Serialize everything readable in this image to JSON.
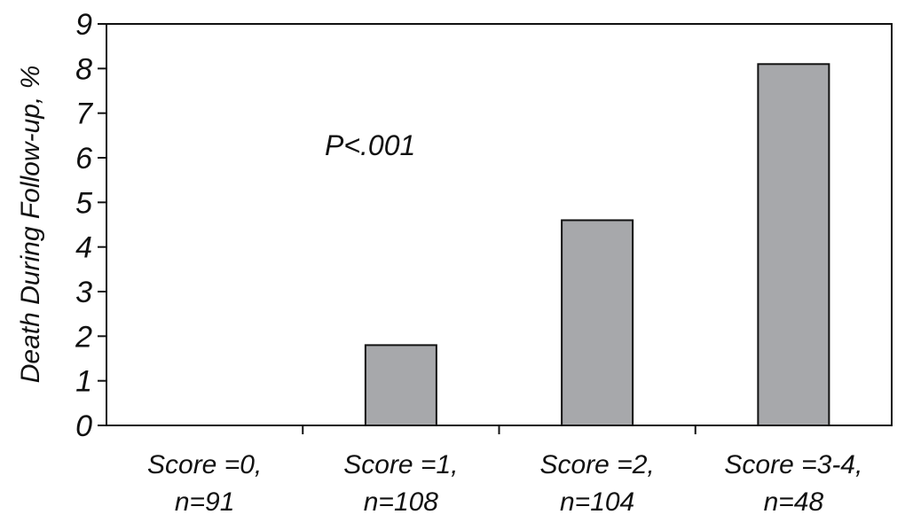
{
  "chart_data": {
    "type": "bar",
    "categories": [
      [
        "Score =0,",
        "n=91"
      ],
      [
        "Score =1,",
        "n=108"
      ],
      [
        "Score =2,",
        "n=104"
      ],
      [
        "Score =3-4,",
        "n=48"
      ]
    ],
    "values": [
      0,
      1.8,
      4.6,
      8.1
    ],
    "ylabel": "Death During Follow-up, %",
    "xlabel": "",
    "title": "",
    "ylim": [
      0,
      9
    ],
    "yticks": [
      0,
      1,
      2,
      3,
      4,
      5,
      6,
      7,
      8,
      9
    ],
    "annotation": "P<.001",
    "grid": false,
    "legend": "none",
    "colors": {
      "bar_fill": "#a7a8ab",
      "bar_stroke": "#111111",
      "axis": "#111111",
      "text": "#111111"
    }
  }
}
